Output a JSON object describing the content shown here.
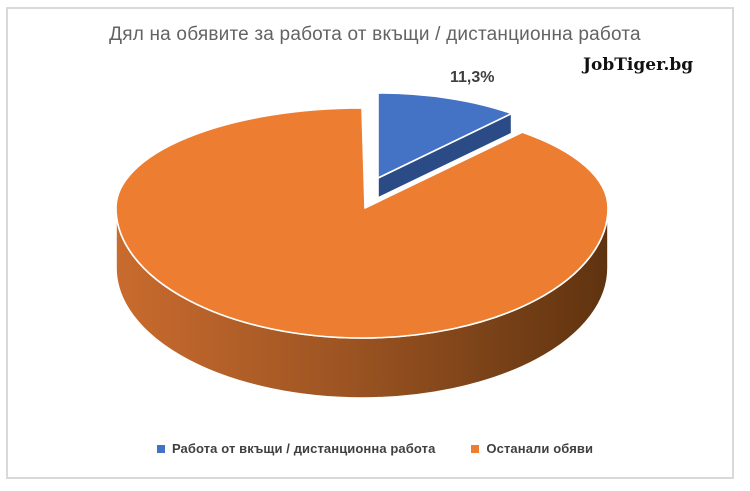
{
  "title": "Дял на обявите за работа от вкъщи / дистанционна работа",
  "watermark": "JobTiger.bg",
  "data_label": "11,3%",
  "chart_data": {
    "type": "pie",
    "style": "3d-exploded-pie",
    "title": "Дял на обявите за работа от вкъщи / дистанционна работа",
    "categories": [
      "Работа от вкъщи / дистанционна работа",
      "Останали обяви"
    ],
    "values": [
      11.3,
      88.7
    ],
    "unit": "%",
    "data_labels": [
      "11,3%",
      ""
    ],
    "colors": [
      "#4472C4",
      "#ED7D31"
    ],
    "side_colors": [
      "#2B4B87",
      "#9E5523"
    ],
    "start_angle_deg": 90,
    "exploded_slice": "Работа от вкъщи / дистанционна работа",
    "legend_position": "bottom",
    "grid": false
  },
  "legend": {
    "items": [
      {
        "label": "Работа от вкъщи / дистанционна работа",
        "color": "#4472C4"
      },
      {
        "label": "Останали обяви",
        "color": "#ED7D31"
      }
    ]
  }
}
